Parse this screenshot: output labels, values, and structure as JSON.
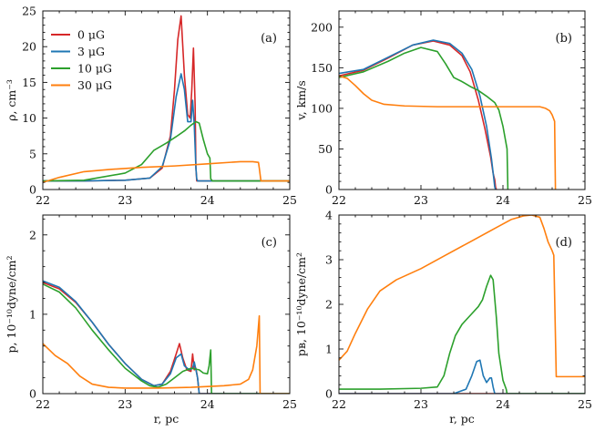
{
  "colors": {
    "0": "#d62728",
    "3": "#1f77b4",
    "10": "#2ca02c",
    "30": "#ff7f0e"
  },
  "legend": [
    {
      "key": "0",
      "label": "0 μG"
    },
    {
      "key": "3",
      "label": "3 μG"
    },
    {
      "key": "10",
      "label": "10 μG"
    },
    {
      "key": "30",
      "label": "30 μG"
    }
  ],
  "chart_data": [
    {
      "type": "line",
      "tag": "(a)",
      "ylabel": "ρ, cm⁻³",
      "xlabel": "",
      "xlim": [
        22,
        25
      ],
      "ylim": [
        0,
        25
      ],
      "xticks": [
        "22",
        "23",
        "24",
        "25"
      ],
      "yticks": [
        "0",
        "5",
        "10",
        "15",
        "20",
        "25"
      ],
      "ytick_values": [
        0,
        5,
        10,
        15,
        20,
        25
      ],
      "series": [
        {
          "name": "0 μG",
          "key": "0",
          "x": [
            22.0,
            22.5,
            23.0,
            23.3,
            23.45,
            23.55,
            23.6,
            23.64,
            23.68,
            23.72,
            23.76,
            23.79,
            23.81,
            23.83,
            23.85,
            23.86,
            23.87,
            23.89,
            25.0
          ],
          "y": [
            1.2,
            1.2,
            1.3,
            1.6,
            3.0,
            7.5,
            14.0,
            21.0,
            24.3,
            16.0,
            10.5,
            10.0,
            14.0,
            19.8,
            12.0,
            3.0,
            1.2,
            1.2,
            1.2
          ]
        },
        {
          "name": "3 μG",
          "key": "3",
          "x": [
            22.0,
            22.5,
            23.0,
            23.3,
            23.45,
            23.55,
            23.62,
            23.68,
            23.72,
            23.76,
            23.8,
            23.82,
            23.84,
            23.86,
            23.87,
            23.88,
            23.9,
            25.0
          ],
          "y": [
            1.2,
            1.2,
            1.3,
            1.6,
            3.2,
            7.0,
            13.0,
            16.2,
            14.0,
            9.5,
            9.5,
            12.5,
            9.0,
            3.0,
            1.5,
            1.2,
            1.2,
            1.2
          ]
        },
        {
          "name": "10 μG",
          "key": "10",
          "x": [
            22.0,
            22.5,
            23.0,
            23.2,
            23.35,
            23.5,
            23.62,
            23.72,
            23.8,
            23.86,
            23.9,
            23.95,
            24.0,
            24.03,
            24.04,
            24.06,
            25.0
          ],
          "y": [
            1.2,
            1.3,
            2.3,
            3.5,
            5.5,
            6.5,
            7.4,
            8.2,
            9.0,
            9.5,
            9.3,
            7.0,
            5.0,
            4.4,
            1.5,
            1.2,
            1.2
          ]
        },
        {
          "name": "30 μG",
          "key": "30",
          "x": [
            22.0,
            22.2,
            22.5,
            22.8,
            23.2,
            23.6,
            24.0,
            24.4,
            24.55,
            24.62,
            24.63,
            24.65,
            25.0
          ],
          "y": [
            1.0,
            1.7,
            2.5,
            2.8,
            3.1,
            3.3,
            3.6,
            3.9,
            3.9,
            3.8,
            3.0,
            1.2,
            1.2
          ]
        }
      ]
    },
    {
      "type": "line",
      "tag": "(b)",
      "ylabel": "v, km/s",
      "xlabel": "",
      "xlim": [
        22,
        25
      ],
      "ylim": [
        0,
        220
      ],
      "xticks": [
        "22",
        "23",
        "24",
        "25"
      ],
      "yticks": [
        "0",
        "50",
        "100",
        "150",
        "200"
      ],
      "ytick_values": [
        0,
        50,
        100,
        150,
        200
      ],
      "series": [
        {
          "name": "0 μG",
          "key": "0",
          "x": [
            22.0,
            22.3,
            22.6,
            22.9,
            23.15,
            23.35,
            23.5,
            23.6,
            23.7,
            23.78,
            23.85,
            23.88,
            23.9,
            23.91,
            23.92
          ],
          "y": [
            140,
            147,
            162,
            178,
            183,
            178,
            165,
            145,
            110,
            75,
            40,
            20,
            12,
            3,
            0
          ]
        },
        {
          "name": "3 μG",
          "key": "3",
          "x": [
            22.0,
            22.3,
            22.6,
            22.9,
            23.15,
            23.35,
            23.5,
            23.62,
            23.72,
            23.8,
            23.86,
            23.89,
            23.9,
            23.91
          ],
          "y": [
            143,
            148,
            163,
            178,
            184,
            180,
            168,
            148,
            115,
            78,
            38,
            12,
            3,
            0
          ]
        },
        {
          "name": "10 μG",
          "key": "10",
          "x": [
            22.0,
            22.3,
            22.6,
            22.8,
            23.0,
            23.2,
            23.3,
            23.4,
            23.5,
            23.6,
            23.7,
            23.8,
            23.9,
            23.95,
            24.0,
            24.05,
            24.06
          ],
          "y": [
            138,
            145,
            158,
            168,
            175,
            170,
            155,
            138,
            133,
            127,
            122,
            115,
            107,
            98,
            78,
            50,
            0
          ]
        },
        {
          "name": "30 μG",
          "key": "30",
          "x": [
            22.0,
            22.1,
            22.2,
            22.3,
            22.4,
            22.55,
            22.8,
            23.2,
            23.8,
            24.2,
            24.45,
            24.52,
            24.57,
            24.6,
            24.63,
            24.64
          ],
          "y": [
            140,
            137,
            128,
            118,
            110,
            105,
            103,
            102,
            102,
            102,
            102,
            100,
            97,
            92,
            84,
            0
          ]
        }
      ]
    },
    {
      "type": "line",
      "tag": "(c)",
      "ylabel": "p, 10⁻¹⁰dyne/cm²",
      "xlabel": "r, pc",
      "xlim": [
        22,
        25
      ],
      "ylim": [
        0,
        2.25
      ],
      "xticks": [
        "22",
        "23",
        "24",
        "25"
      ],
      "yticks": [
        "0",
        "1",
        "2"
      ],
      "ytick_values": [
        0,
        1,
        2
      ],
      "series": [
        {
          "name": "0 μG",
          "key": "0",
          "x": [
            22.0,
            22.2,
            22.4,
            22.6,
            22.8,
            23.0,
            23.2,
            23.35,
            23.45,
            23.55,
            23.62,
            23.66,
            23.7,
            23.75,
            23.8,
            23.82,
            23.84,
            23.86,
            23.88,
            23.9,
            25.0
          ],
          "y": [
            1.4,
            1.32,
            1.15,
            0.9,
            0.62,
            0.38,
            0.18,
            0.1,
            0.12,
            0.28,
            0.5,
            0.63,
            0.45,
            0.3,
            0.28,
            0.5,
            0.3,
            0.32,
            0.2,
            0.0,
            0.0
          ]
        },
        {
          "name": "3 μG",
          "key": "3",
          "x": [
            22.0,
            22.2,
            22.4,
            22.6,
            22.8,
            23.0,
            23.2,
            23.35,
            23.45,
            23.55,
            23.62,
            23.68,
            23.72,
            23.78,
            23.82,
            23.84,
            23.86,
            23.88,
            23.9,
            25.0
          ],
          "y": [
            1.42,
            1.34,
            1.16,
            0.9,
            0.62,
            0.38,
            0.18,
            0.1,
            0.12,
            0.25,
            0.45,
            0.5,
            0.35,
            0.3,
            0.32,
            0.4,
            0.3,
            0.2,
            0.0,
            0.0
          ]
        },
        {
          "name": "10 μG",
          "key": "10",
          "x": [
            22.0,
            22.2,
            22.4,
            22.6,
            22.8,
            23.0,
            23.2,
            23.3,
            23.4,
            23.5,
            23.6,
            23.7,
            23.8,
            23.9,
            23.95,
            24.0,
            24.02,
            24.04,
            24.05,
            25.0
          ],
          "y": [
            1.38,
            1.28,
            1.08,
            0.8,
            0.55,
            0.32,
            0.16,
            0.1,
            0.08,
            0.12,
            0.2,
            0.28,
            0.32,
            0.3,
            0.26,
            0.25,
            0.35,
            0.55,
            0.0,
            0.0
          ]
        },
        {
          "name": "30 μG",
          "key": "30",
          "x": [
            22.0,
            22.15,
            22.3,
            22.45,
            22.6,
            22.8,
            23.0,
            23.4,
            23.8,
            24.2,
            24.4,
            24.5,
            24.55,
            24.6,
            24.63,
            24.64,
            25.0
          ],
          "y": [
            0.63,
            0.48,
            0.38,
            0.22,
            0.12,
            0.08,
            0.07,
            0.07,
            0.08,
            0.1,
            0.12,
            0.18,
            0.3,
            0.6,
            0.98,
            0.0,
            0.0
          ]
        }
      ]
    },
    {
      "type": "line",
      "tag": "(d)",
      "ylabel": "pʙ, 10⁻¹⁰dyne/cm²",
      "xlabel": "r, pc",
      "xlim": [
        22,
        25
      ],
      "ylim": [
        0,
        4
      ],
      "xticks": [
        "22",
        "23",
        "24",
        "25"
      ],
      "yticks": [
        "0",
        "1",
        "2",
        "3",
        "4"
      ],
      "ytick_values": [
        0,
        1,
        2,
        3,
        4
      ],
      "series": [
        {
          "name": "0 μG",
          "key": "0",
          "x": [
            22.0,
            25.0
          ],
          "y": [
            0.0,
            0.0
          ]
        },
        {
          "name": "3 μG",
          "key": "3",
          "x": [
            22.0,
            23.4,
            23.55,
            23.62,
            23.68,
            23.72,
            23.76,
            23.8,
            23.84,
            23.86,
            23.88,
            23.9,
            25.0
          ],
          "y": [
            0.0,
            0.0,
            0.1,
            0.4,
            0.72,
            0.75,
            0.4,
            0.25,
            0.35,
            0.35,
            0.15,
            0.0,
            0.0
          ]
        },
        {
          "name": "10 μG",
          "key": "10",
          "x": [
            22.0,
            22.5,
            23.0,
            23.2,
            23.28,
            23.35,
            23.42,
            23.5,
            23.6,
            23.7,
            23.75,
            23.8,
            23.85,
            23.88,
            23.92,
            23.95,
            24.0,
            24.04,
            24.05,
            25.0
          ],
          "y": [
            0.1,
            0.1,
            0.12,
            0.15,
            0.4,
            0.9,
            1.3,
            1.55,
            1.75,
            1.95,
            2.1,
            2.4,
            2.65,
            2.55,
            1.7,
            0.9,
            0.3,
            0.1,
            0.0,
            0.0
          ]
        },
        {
          "name": "30 μG",
          "key": "30",
          "x": [
            22.0,
            22.1,
            22.2,
            22.35,
            22.5,
            22.7,
            23.0,
            23.3,
            23.6,
            23.9,
            24.1,
            24.25,
            24.35,
            24.45,
            24.5,
            24.55,
            24.6,
            24.62,
            24.63,
            24.65,
            25.0
          ],
          "y": [
            0.75,
            0.95,
            1.35,
            1.9,
            2.3,
            2.55,
            2.8,
            3.1,
            3.4,
            3.7,
            3.9,
            3.98,
            4.0,
            3.95,
            3.7,
            3.4,
            3.2,
            3.1,
            2.2,
            0.38,
            0.38
          ]
        }
      ]
    }
  ]
}
